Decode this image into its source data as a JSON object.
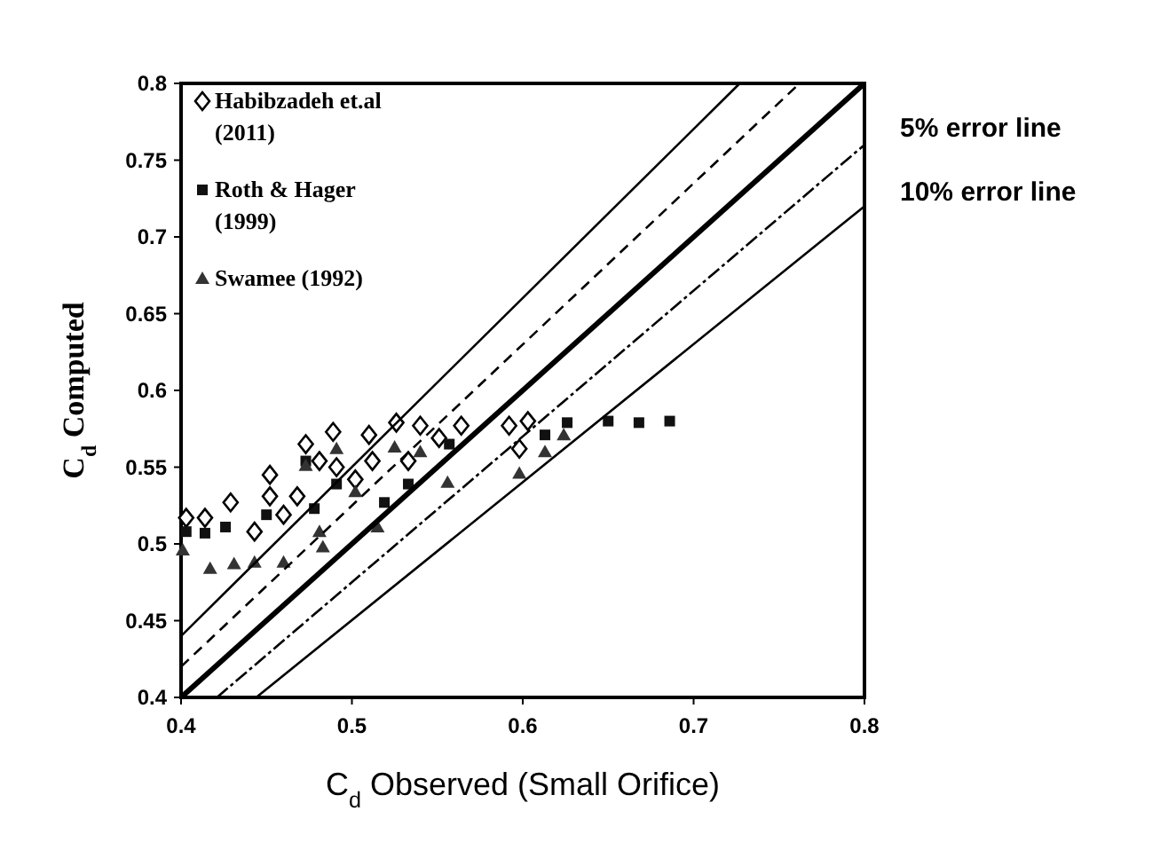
{
  "chart_data": {
    "type": "scatter",
    "xlabel": "C$_{d}$ Observed (Small Orifice)",
    "ylabel": "C$_{d}$ Computed",
    "xlim": [
      0.4,
      0.8
    ],
    "xticks": [
      0.4,
      0.5,
      0.6,
      0.7,
      0.8
    ],
    "ylim": [
      0.4,
      0.8
    ],
    "yticks": [
      0.4,
      0.45,
      0.5,
      0.55,
      0.6,
      0.65,
      0.7,
      0.75,
      0.8
    ],
    "grid": false,
    "legend": "top left",
    "annotations": [
      "5% error line",
      "10% error line"
    ],
    "series": [
      {
        "name": "Habibzadeh et.al (2011)",
        "color": "#ffffff",
        "marker": "diamond",
        "x": [
          0.403,
          0.414,
          0.429,
          0.452,
          0.473,
          0.489,
          0.51,
          0.526,
          0.54,
          0.564,
          0.603,
          0.592,
          0.443,
          0.452,
          0.468,
          0.481,
          0.491,
          0.502,
          0.512,
          0.533,
          0.551,
          0.46,
          0.598
        ],
        "values": [
          0.517,
          0.517,
          0.527,
          0.545,
          0.565,
          0.573,
          0.571,
          0.579,
          0.577,
          0.577,
          0.58,
          0.577,
          0.508,
          0.531,
          0.531,
          0.554,
          0.55,
          0.542,
          0.554,
          0.554,
          0.569,
          0.519,
          0.562
        ]
      },
      {
        "name": "Roth & Hager (1999)",
        "color": "#111111",
        "marker": "square",
        "x": [
          0.403,
          0.414,
          0.426,
          0.45,
          0.473,
          0.478,
          0.491,
          0.519,
          0.533,
          0.557,
          0.613,
          0.626,
          0.65,
          0.668,
          0.686
        ],
        "values": [
          0.508,
          0.507,
          0.511,
          0.519,
          0.554,
          0.523,
          0.539,
          0.527,
          0.539,
          0.565,
          0.571,
          0.579,
          0.58,
          0.579,
          0.58
        ]
      },
      {
        "name": "Swamee (1992)",
        "color": "#333333",
        "marker": "triangle",
        "x": [
          0.401,
          0.417,
          0.431,
          0.443,
          0.46,
          0.473,
          0.483,
          0.491,
          0.502,
          0.515,
          0.525,
          0.54,
          0.556,
          0.598,
          0.613,
          0.624,
          0.481
        ],
        "values": [
          0.496,
          0.484,
          0.487,
          0.488,
          0.488,
          0.551,
          0.498,
          0.562,
          0.534,
          0.511,
          0.563,
          0.56,
          0.54,
          0.546,
          0.56,
          0.571,
          0.508
        ]
      },
      {
        "type": "line",
        "color": "#000000",
        "line_style": "solid",
        "x": [
          0.4,
          0.8
        ],
        "values": [
          0.4,
          0.8
        ]
      },
      {
        "type": "line",
        "color": "#000000",
        "line_style": "dashed",
        "x": [
          0.4,
          0.762
        ],
        "values": [
          0.42,
          0.8
        ]
      },
      {
        "type": "line",
        "color": "#000000",
        "line_style": "dotted",
        "x": [
          0.421,
          0.8
        ],
        "values": [
          0.4,
          0.76
        ]
      },
      {
        "type": "line",
        "color": "#000000",
        "line_style": "solid",
        "x": [
          0.4,
          0.727
        ],
        "values": [
          0.44,
          0.8
        ]
      },
      {
        "type": "line",
        "color": "#000000",
        "line_style": "solid",
        "x": [
          0.444,
          0.8
        ],
        "values": [
          0.4,
          0.72
        ]
      }
    ]
  }
}
